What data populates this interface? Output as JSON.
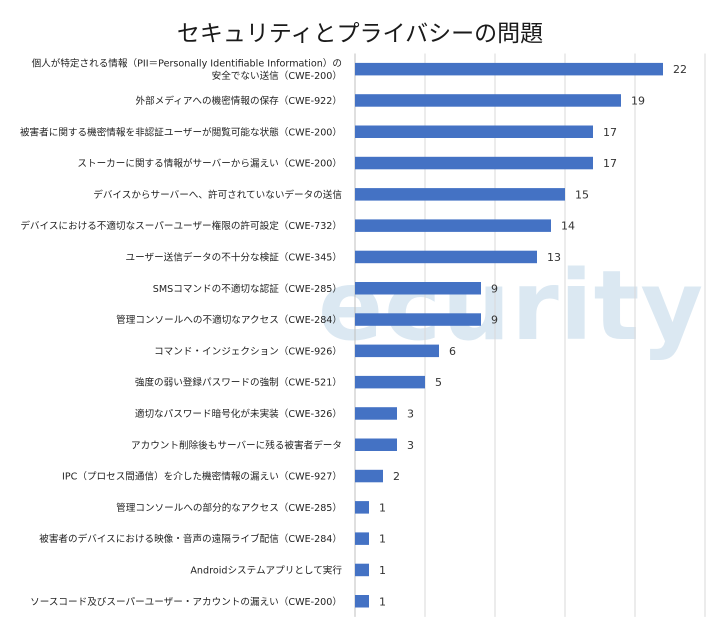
{
  "chart_data": {
    "type": "bar",
    "orientation": "horizontal",
    "title": "セキュリティとプライバシーの問題",
    "categories": [
      [
        "個人が特定される情報（PII＝Personally Identifiable Information）の",
        "安全でない送信（CWE-200）"
      ],
      [
        "外部メディアへの機密情報の保存（CWE-922）"
      ],
      [
        "被害者に関する機密情報を非認証ユーザーが閲覧可能な状態（CWE-200）"
      ],
      [
        "ストーカーに関する情報がサーバーから漏えい（CWE-200）"
      ],
      [
        "デバイスからサーバーへ、許可されていないデータの送信"
      ],
      [
        "デバイスにおける不適切なスーパーユーザー権限の許可設定（CWE-732）"
      ],
      [
        "ユーザー送信データの不十分な検証（CWE-345）"
      ],
      [
        "SMSコマンドの不適切な認証（CWE-285）"
      ],
      [
        "管理コンソールへの不適切なアクセス（CWE-284）"
      ],
      [
        "コマンド・インジェクション（CWE-926）"
      ],
      [
        "強度の弱い登録パスワードの強制（CWE-521）"
      ],
      [
        "適切なパスワード暗号化が未実装（CWE-326）"
      ],
      [
        "アカウント削除後もサーバーに残る被害者データ"
      ],
      [
        "IPC（プロセス間通信）を介した機密情報の漏えい（CWE-927）"
      ],
      [
        "管理コンソールへの部分的なアクセス（CWE-285）"
      ],
      [
        "被害者のデバイスにおける映像・音声の遠隔ライブ配信（CWE-284）"
      ],
      [
        "Androidシステムアプリとして実行"
      ],
      [
        "ソースコード及びスーパーユーザー・アカウントの漏えい（CWE-200）"
      ]
    ],
    "values": [
      22,
      19,
      17,
      17,
      15,
      14,
      13,
      9,
      9,
      6,
      5,
      3,
      3,
      2,
      1,
      1,
      1,
      1
    ],
    "xlim": [
      0,
      25
    ],
    "grid": true,
    "bar_color": "#4472c4",
    "watermark": "ecurity"
  }
}
